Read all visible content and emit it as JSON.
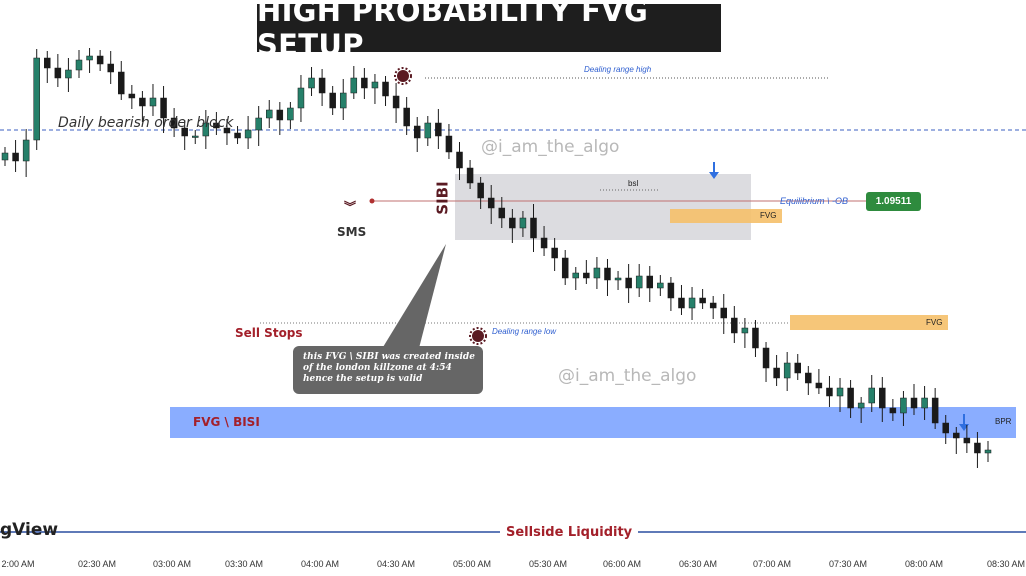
{
  "title": "HIGH PROBABILITY FVG SETUP",
  "watermarks": [
    "@i_am_the_algo",
    "@i_am_the_algo"
  ],
  "brand": "gView",
  "colors": {
    "bull": "#26806a",
    "bear": "#1a1a1a",
    "fvg_orange": "#f5c06a",
    "bisi_blue": "#7da4ff",
    "gray_zone": "#d9d9dc",
    "dark_red": "#5a1a22",
    "equilibrium_green": "#2e8b3e"
  },
  "labels": {
    "daily_ob": "Daily bearish order block",
    "dealing_high": "Dealing range high",
    "dealing_low": "Dealing range low",
    "equilibrium": "Equilibrium \\ -OB",
    "equilibrium_price": "1.09511",
    "sibi": "SIBI",
    "sms": "SMS",
    "sms_icon": "double-chevron-down-icon",
    "bsl": "bsl",
    "fvg1": "FVG",
    "fvg2": "FVG",
    "sell_stops": "Sell Stops",
    "fvg_bisi": "FVG \\ BISI",
    "bpr": "BPR",
    "sellside": "Sellside Liquidity",
    "callout": "this FVG \\ SIBI was created inside of the london killzone at 4:54 hence  the setup is valid"
  },
  "chart_data": {
    "type": "candlestick",
    "title": "HIGH PROBABILITY FVG SETUP",
    "x_tick_labels": [
      "2:00 AM",
      "02:30 AM",
      "03:00 AM",
      "03:30 AM",
      "04:00 AM",
      "04:30 AM",
      "05:00 AM",
      "05:30 AM",
      "06:00 AM",
      "06:30 AM",
      "07:00 AM",
      "07:30 AM",
      "08:00 AM",
      "08:30 AM"
    ],
    "price_labels": [
      "1.09511"
    ],
    "zones": [
      "Daily bearish order block",
      "SIBI",
      "FVG",
      "FVG",
      "FVG \\ BISI",
      "BPR",
      "Sellside Liquidity"
    ],
    "candles_close": [
      395,
      387,
      408,
      490,
      480,
      470,
      478,
      488,
      492,
      484,
      476,
      454,
      450,
      442,
      450,
      430,
      420,
      412,
      412,
      425,
      420,
      415,
      410,
      418,
      430,
      438,
      428,
      440,
      460,
      470,
      455,
      440,
      455,
      470,
      460,
      466,
      452,
      440,
      422,
      410,
      425,
      412,
      396,
      380,
      365,
      350,
      340,
      330,
      320,
      330,
      310,
      300,
      290,
      270,
      275,
      270,
      280,
      268,
      270,
      260,
      272,
      260,
      265,
      250,
      240,
      250,
      245,
      240,
      230,
      215,
      220,
      200,
      180,
      170,
      185,
      175,
      165,
      160,
      152,
      160,
      140,
      145,
      160,
      140,
      135,
      150,
      140,
      150,
      125,
      115,
      110,
      105,
      95,
      98
    ],
    "candles_open": [
      388,
      395,
      387,
      408,
      490,
      480,
      470,
      478,
      488,
      492,
      484,
      476,
      454,
      450,
      442,
      450,
      430,
      420,
      412,
      412,
      425,
      420,
      415,
      410,
      418,
      430,
      438,
      428,
      440,
      460,
      470,
      455,
      440,
      455,
      470,
      460,
      466,
      452,
      440,
      422,
      410,
      425,
      412,
      396,
      380,
      365,
      350,
      340,
      330,
      320,
      330,
      310,
      300,
      290,
      270,
      275,
      270,
      280,
      268,
      270,
      260,
      272,
      260,
      265,
      250,
      240,
      250,
      245,
      240,
      230,
      215,
      220,
      200,
      180,
      170,
      185,
      175,
      165,
      160,
      152,
      160,
      140,
      145,
      160,
      140,
      135,
      150,
      140,
      150,
      125,
      115,
      110,
      105,
      95
    ]
  }
}
